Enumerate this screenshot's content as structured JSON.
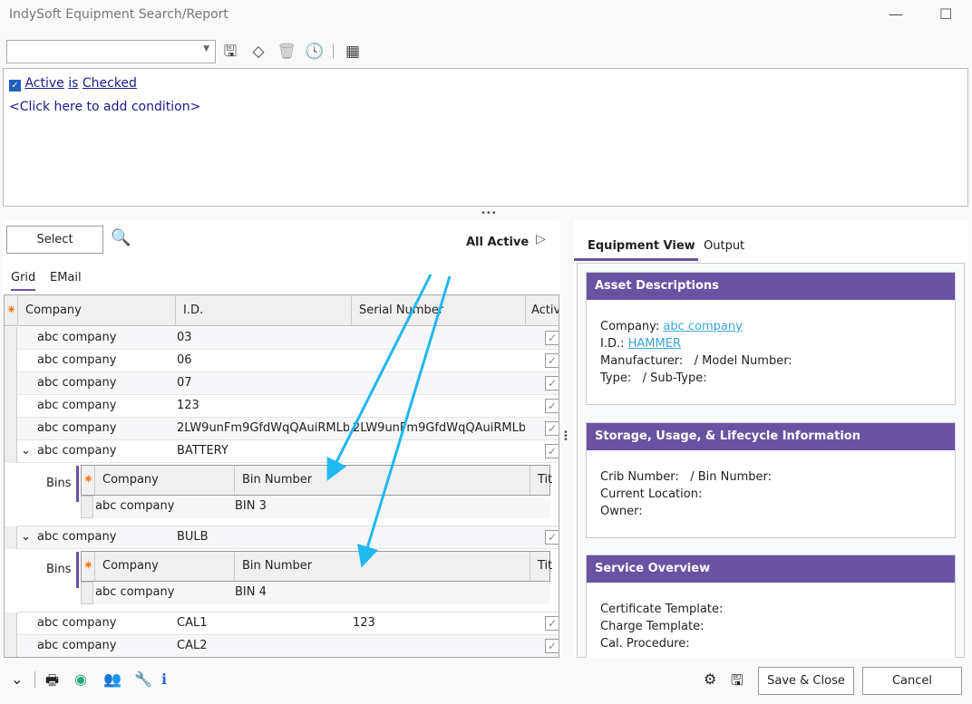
{
  "window": {
    "title": "IndySoft Equipment Search/Report",
    "minimize": "—",
    "maximize": "☐"
  },
  "toolbar": {
    "combo_value": "",
    "icons": [
      "save-icon",
      "eraser-icon",
      "trash-icon",
      "history-icon",
      "grid-layout-icon"
    ]
  },
  "filter": {
    "field": "Active",
    "op": "is",
    "value": "Checked",
    "add_condition": "<Click here to add condition>"
  },
  "left": {
    "select_label": "Select",
    "all_active": "All Active",
    "tabs": [
      {
        "label": "Grid",
        "active": true
      },
      {
        "label": "EMail"
      }
    ],
    "columns": [
      "Company",
      "I.D.",
      "Serial Number",
      "Active"
    ],
    "rows": [
      {
        "company": "abc company",
        "id": "03",
        "serial": "",
        "active": true
      },
      {
        "company": "abc company",
        "id": "06",
        "serial": "",
        "active": true
      },
      {
        "company": "abc company",
        "id": "07",
        "serial": "",
        "active": true
      },
      {
        "company": "abc company",
        "id": "123",
        "serial": "",
        "active": true
      },
      {
        "company": "abc company",
        "id": "2LW9unFm9GfdWqQAuiRMLb",
        "serial": "2LW9unFm9GfdWqQAuiRMLb",
        "active": true
      },
      {
        "company": "abc company",
        "id": "BATTERY",
        "serial": "",
        "active": true,
        "expanded": true,
        "bins": {
          "label": "Bins",
          "columns": [
            "Company",
            "Bin Number",
            "Tit"
          ],
          "rows": [
            {
              "company": "abc company",
              "bin": "BIN 3"
            }
          ]
        }
      },
      {
        "company": "abc company",
        "id": "BULB",
        "serial": "",
        "active": true,
        "expanded": true,
        "bins": {
          "label": "Bins",
          "columns": [
            "Company",
            "Bin Number",
            "Tit"
          ],
          "rows": [
            {
              "company": "abc company",
              "bin": "BIN 4"
            }
          ]
        }
      },
      {
        "company": "abc company",
        "id": "CAL1",
        "serial": "123",
        "active": true
      },
      {
        "company": "abc company",
        "id": "CAL2",
        "serial": "",
        "active": true
      }
    ]
  },
  "right": {
    "tabs": [
      {
        "label": "Equipment View",
        "active": true
      },
      {
        "label": "Output"
      }
    ],
    "asset": {
      "title": "Asset Descriptions",
      "company_label": "Company:",
      "company": "abc company",
      "id_label": "I.D.:",
      "id": "HAMMER",
      "line3": "Manufacturer:   / Model Number:",
      "line4": "Type:   / Sub-Type:"
    },
    "storage": {
      "title": "Storage, Usage, & Lifecycle Information",
      "line1": "Crib Number:   / Bin Number:",
      "line2": "Current Location:",
      "line3": "Owner:"
    },
    "service": {
      "title": "Service Overview",
      "line1": "Certificate Template:",
      "line2": "Charge Template:",
      "line3": "Cal. Procedure:"
    }
  },
  "footer": {
    "save_close": "Save & Close",
    "cancel": "Cancel"
  },
  "colors": {
    "accent": "#6a52a3",
    "link": "#3aa6d8",
    "annotation_arrow": "#1fb8f0"
  }
}
